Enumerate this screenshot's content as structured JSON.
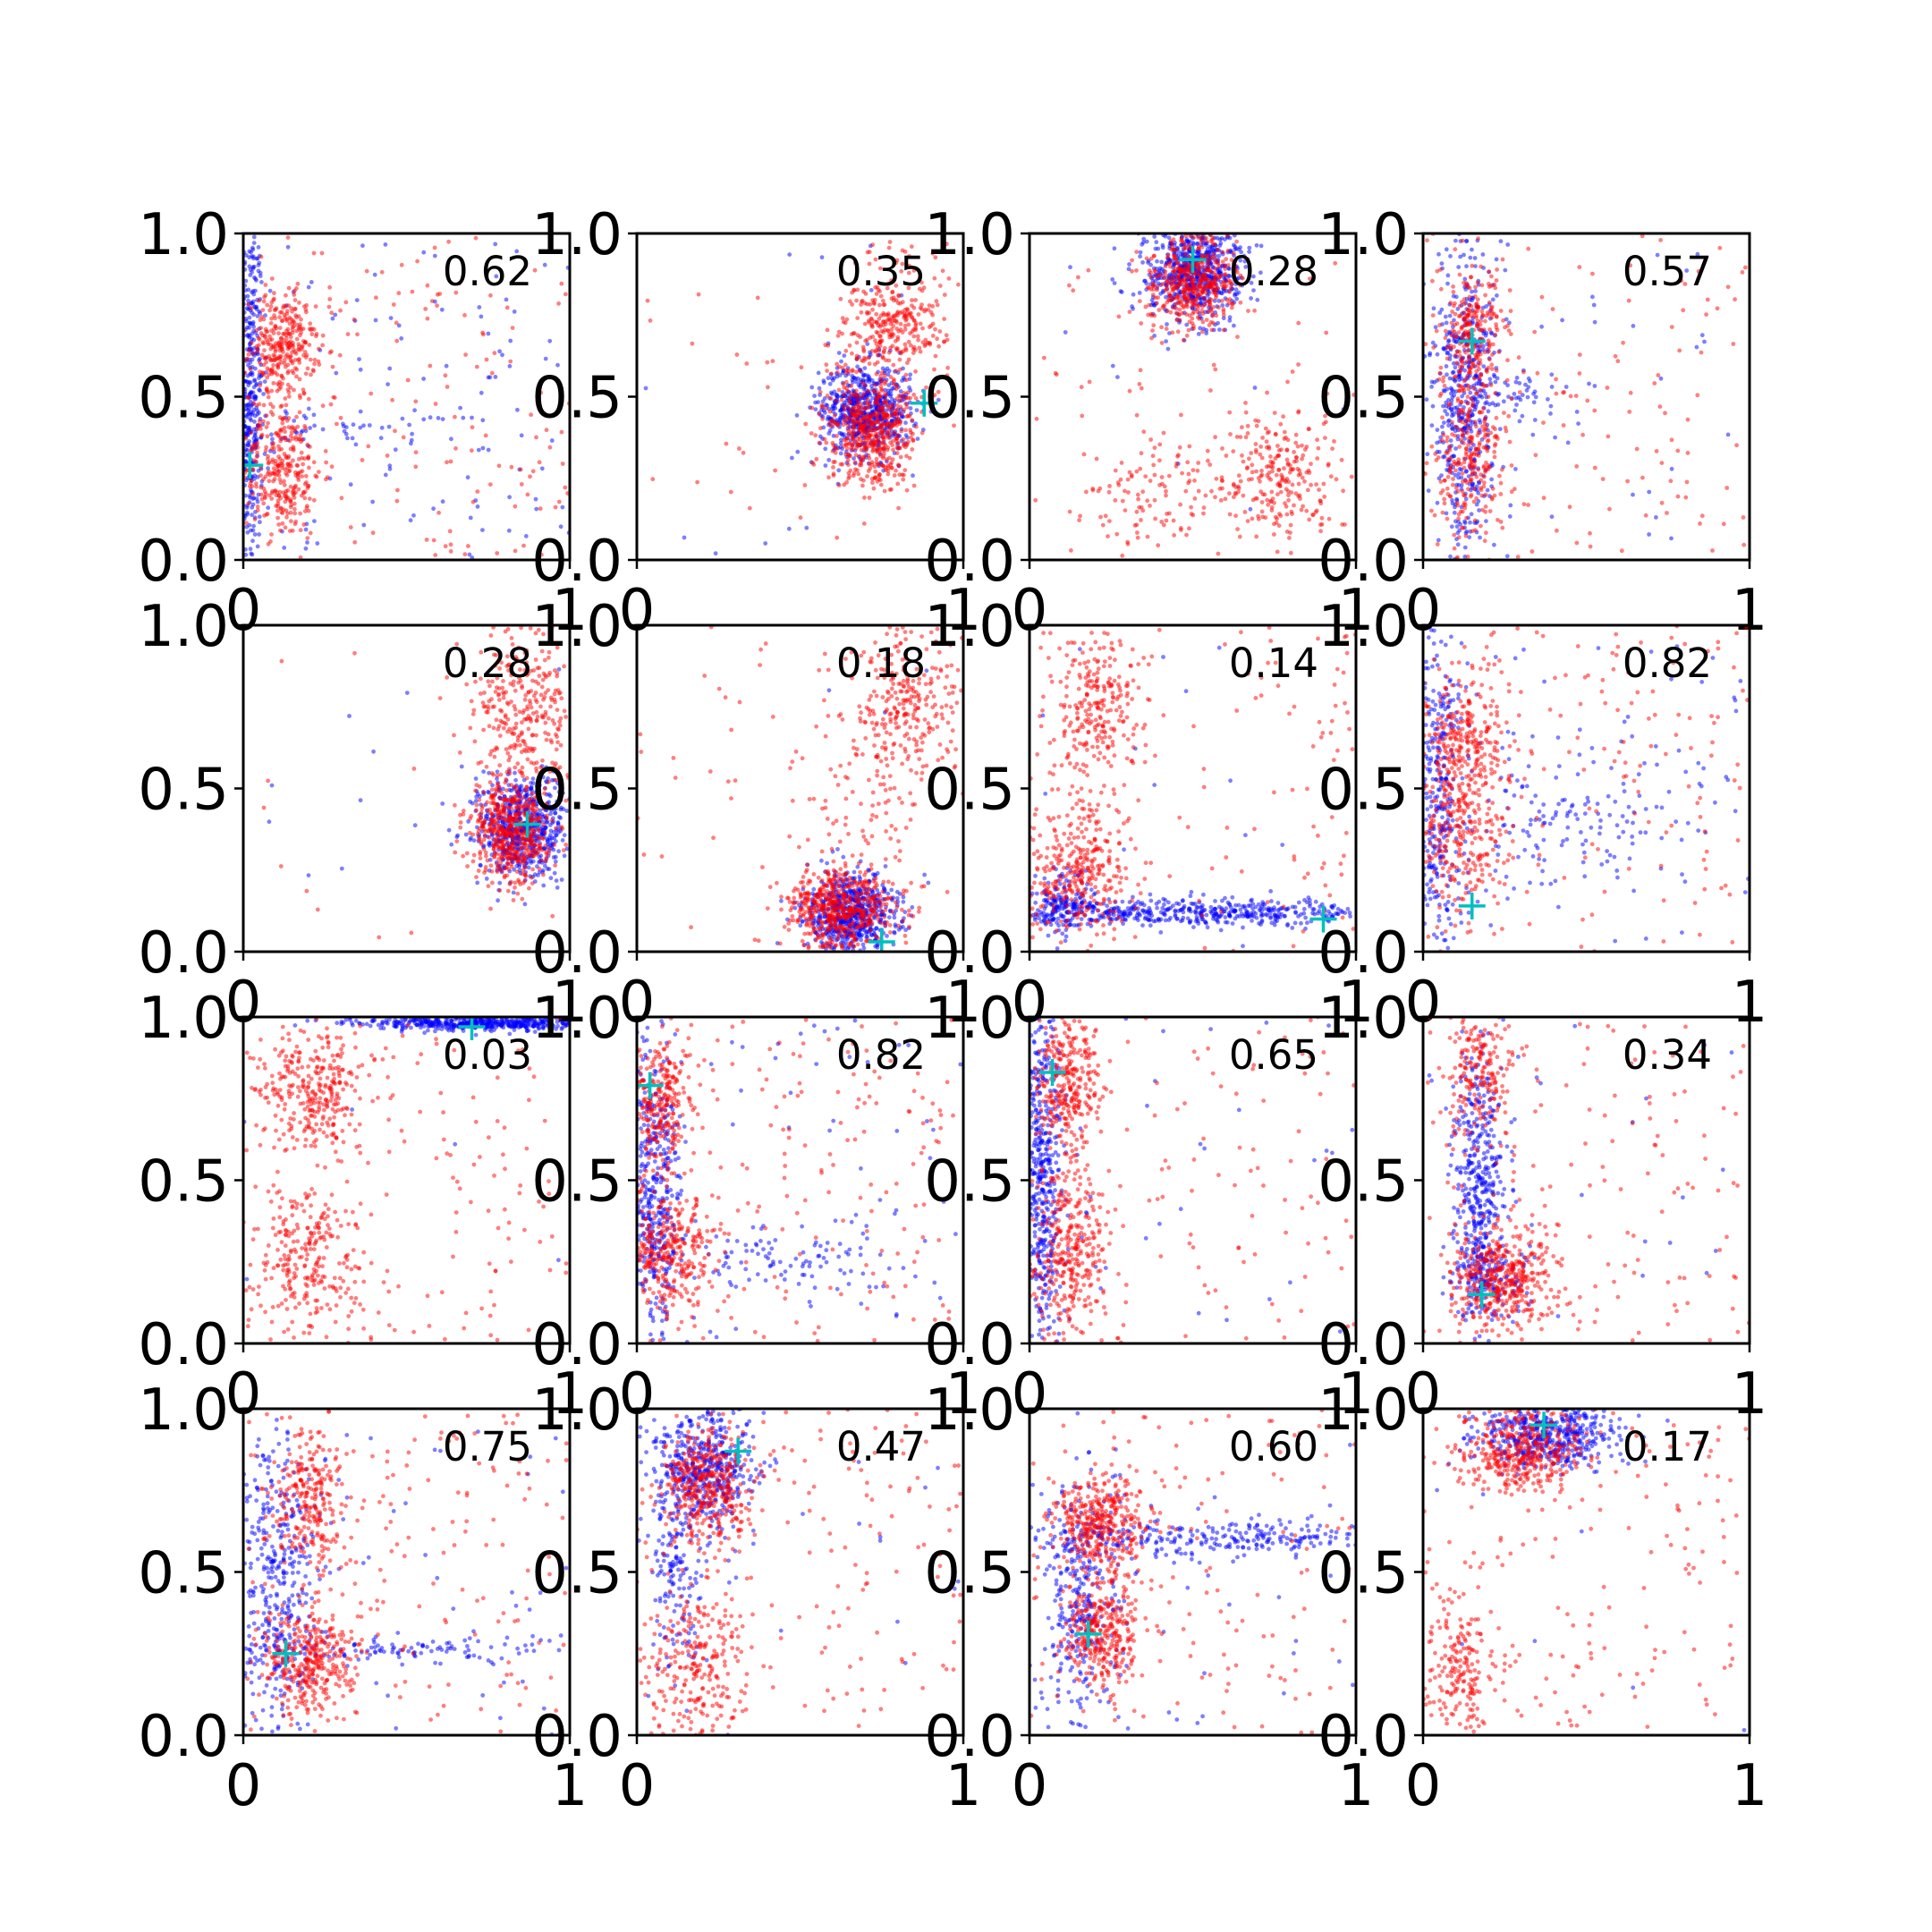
{
  "chart_data": {
    "type": "scatter",
    "layout": "4x4 grid of scatter panels",
    "xlim": [
      0,
      1
    ],
    "ylim": [
      0,
      1
    ],
    "x_ticks": [
      "0",
      "1"
    ],
    "y_ticks": [
      "0.0",
      "0.5",
      "1.0"
    ],
    "series_colors": {
      "red": "#ff0000",
      "blue": "#0000ff",
      "marker": "#00bfbf"
    },
    "marker_shape": "plus",
    "grid": false,
    "legend": "none",
    "panels": [
      {
        "label": "0.62",
        "marker": [
          0.02,
          0.29
        ],
        "red_clusters": [
          [
            0.12,
            0.65,
            0.05,
            0.08,
            300
          ],
          [
            0.12,
            0.27,
            0.06,
            0.1,
            300
          ]
        ],
        "red_uniform": 160,
        "blue_clusters": [
          [
            0.02,
            0.5,
            0.02,
            0.3,
            420
          ],
          [
            0.3,
            0.4,
            0.25,
            0.03,
            60
          ]
        ],
        "blue_uniform": 110
      },
      {
        "label": "0.35",
        "marker": [
          0.88,
          0.48
        ],
        "red_clusters": [
          [
            0.72,
            0.4,
            0.07,
            0.09,
            520
          ],
          [
            0.78,
            0.72,
            0.08,
            0.1,
            320
          ]
        ],
        "red_uniform": 40,
        "blue_clusters": [
          [
            0.7,
            0.46,
            0.07,
            0.07,
            650
          ]
        ],
        "blue_uniform": 15
      },
      {
        "label": "0.28",
        "marker": [
          0.5,
          0.92
        ],
        "red_clusters": [
          [
            0.5,
            0.85,
            0.07,
            0.07,
            450
          ],
          [
            0.75,
            0.25,
            0.1,
            0.1,
            260
          ],
          [
            0.35,
            0.2,
            0.1,
            0.1,
            100
          ]
        ],
        "red_uniform": 50,
        "blue_clusters": [
          [
            0.5,
            0.88,
            0.07,
            0.07,
            650
          ]
        ],
        "blue_uniform": 10
      },
      {
        "label": "0.57",
        "marker": [
          0.15,
          0.67
        ],
        "red_clusters": [
          [
            0.15,
            0.7,
            0.05,
            0.1,
            240
          ],
          [
            0.15,
            0.3,
            0.05,
            0.12,
            240
          ]
        ],
        "red_uniform": 140,
        "blue_clusters": [
          [
            0.13,
            0.5,
            0.05,
            0.25,
            500
          ],
          [
            0.25,
            0.5,
            0.1,
            0.04,
            60
          ]
        ],
        "blue_uniform": 40
      },
      {
        "label": "0.28",
        "marker": [
          0.87,
          0.39
        ],
        "red_clusters": [
          [
            0.82,
            0.37,
            0.06,
            0.08,
            520
          ],
          [
            0.85,
            0.75,
            0.08,
            0.12,
            300
          ]
        ],
        "red_uniform": 20,
        "blue_clusters": [
          [
            0.85,
            0.38,
            0.07,
            0.08,
            650
          ]
        ],
        "blue_uniform": 10
      },
      {
        "label": "0.18",
        "marker": [
          0.75,
          0.03
        ],
        "red_clusters": [
          [
            0.62,
            0.13,
            0.08,
            0.06,
            520
          ],
          [
            0.82,
            0.75,
            0.09,
            0.12,
            280
          ],
          [
            0.7,
            0.4,
            0.15,
            0.15,
            100
          ]
        ],
        "red_uniform": 40,
        "blue_clusters": [
          [
            0.66,
            0.12,
            0.07,
            0.06,
            650
          ]
        ],
        "blue_uniform": 5
      },
      {
        "label": "0.14",
        "marker": [
          0.9,
          0.1
        ],
        "red_clusters": [
          [
            0.2,
            0.75,
            0.07,
            0.12,
            260
          ],
          [
            0.15,
            0.25,
            0.08,
            0.1,
            320
          ]
        ],
        "red_uniform": 120,
        "blue_clusters": [
          [
            0.5,
            0.12,
            0.3,
            0.02,
            520
          ],
          [
            0.1,
            0.15,
            0.05,
            0.05,
            150
          ]
        ],
        "blue_uniform": 15
      },
      {
        "label": "0.82",
        "marker": [
          0.15,
          0.14
        ],
        "red_clusters": [
          [
            0.12,
            0.65,
            0.06,
            0.1,
            260
          ],
          [
            0.12,
            0.35,
            0.07,
            0.12,
            240
          ]
        ],
        "red_uniform": 160,
        "blue_clusters": [
          [
            0.05,
            0.5,
            0.04,
            0.3,
            350
          ],
          [
            0.4,
            0.4,
            0.25,
            0.12,
            150
          ]
        ],
        "blue_uniform": 60
      },
      {
        "label": "0.03",
        "marker": [
          0.7,
          0.97
        ],
        "red_clusters": [
          [
            0.22,
            0.78,
            0.08,
            0.09,
            300
          ],
          [
            0.2,
            0.25,
            0.08,
            0.12,
            260
          ]
        ],
        "red_uniform": 150,
        "blue_clusters": [
          [
            0.72,
            0.98,
            0.18,
            0.01,
            500
          ]
        ],
        "blue_uniform": 5
      },
      {
        "label": "0.82",
        "marker": [
          0.04,
          0.79
        ],
        "red_clusters": [
          [
            0.08,
            0.72,
            0.05,
            0.1,
            260
          ],
          [
            0.1,
            0.28,
            0.07,
            0.1,
            320
          ]
        ],
        "red_uniform": 170,
        "blue_clusters": [
          [
            0.05,
            0.45,
            0.04,
            0.25,
            400
          ],
          [
            0.4,
            0.25,
            0.25,
            0.06,
            120
          ]
        ],
        "blue_uniform": 60
      },
      {
        "label": "0.65",
        "marker": [
          0.07,
          0.83
        ],
        "red_clusters": [
          [
            0.12,
            0.8,
            0.05,
            0.1,
            300
          ],
          [
            0.12,
            0.28,
            0.06,
            0.12,
            300
          ]
        ],
        "red_uniform": 140,
        "blue_clusters": [
          [
            0.04,
            0.5,
            0.03,
            0.3,
            500
          ]
        ],
        "blue_uniform": 40
      },
      {
        "label": "0.34",
        "marker": [
          0.18,
          0.15
        ],
        "red_clusters": [
          [
            0.25,
            0.2,
            0.08,
            0.08,
            420
          ],
          [
            0.18,
            0.85,
            0.06,
            0.1,
            200
          ]
        ],
        "red_uniform": 150,
        "blue_clusters": [
          [
            0.17,
            0.5,
            0.04,
            0.2,
            400
          ],
          [
            0.2,
            0.2,
            0.06,
            0.06,
            150
          ]
        ],
        "blue_uniform": 30
      },
      {
        "label": "0.75",
        "marker": [
          0.13,
          0.25
        ],
        "red_clusters": [
          [
            0.2,
            0.72,
            0.05,
            0.1,
            240
          ],
          [
            0.2,
            0.22,
            0.07,
            0.09,
            340
          ]
        ],
        "red_uniform": 180,
        "blue_clusters": [
          [
            0.1,
            0.45,
            0.06,
            0.25,
            400
          ],
          [
            0.5,
            0.26,
            0.25,
            0.02,
            100
          ]
        ],
        "blue_uniform": 60
      },
      {
        "label": "0.47",
        "marker": [
          0.31,
          0.87
        ],
        "red_clusters": [
          [
            0.22,
            0.75,
            0.07,
            0.09,
            380
          ],
          [
            0.18,
            0.2,
            0.07,
            0.12,
            250
          ]
        ],
        "red_uniform": 160,
        "blue_clusters": [
          [
            0.2,
            0.82,
            0.08,
            0.1,
            500
          ],
          [
            0.12,
            0.5,
            0.04,
            0.15,
            150
          ]
        ],
        "blue_uniform": 20
      },
      {
        "label": "0.60",
        "marker": [
          0.18,
          0.31
        ],
        "red_clusters": [
          [
            0.22,
            0.65,
            0.07,
            0.07,
            360
          ],
          [
            0.22,
            0.32,
            0.06,
            0.09,
            320
          ]
        ],
        "red_uniform": 140,
        "blue_clusters": [
          [
            0.55,
            0.6,
            0.3,
            0.03,
            300
          ],
          [
            0.15,
            0.4,
            0.06,
            0.2,
            300
          ]
        ],
        "blue_uniform": 40
      },
      {
        "label": "0.17",
        "marker": [
          0.37,
          0.95
        ],
        "red_clusters": [
          [
            0.3,
            0.87,
            0.1,
            0.06,
            400
          ],
          [
            0.12,
            0.2,
            0.06,
            0.12,
            200
          ]
        ],
        "red_uniform": 150,
        "blue_clusters": [
          [
            0.38,
            0.92,
            0.1,
            0.05,
            500
          ]
        ],
        "blue_uniform": 10
      }
    ]
  }
}
